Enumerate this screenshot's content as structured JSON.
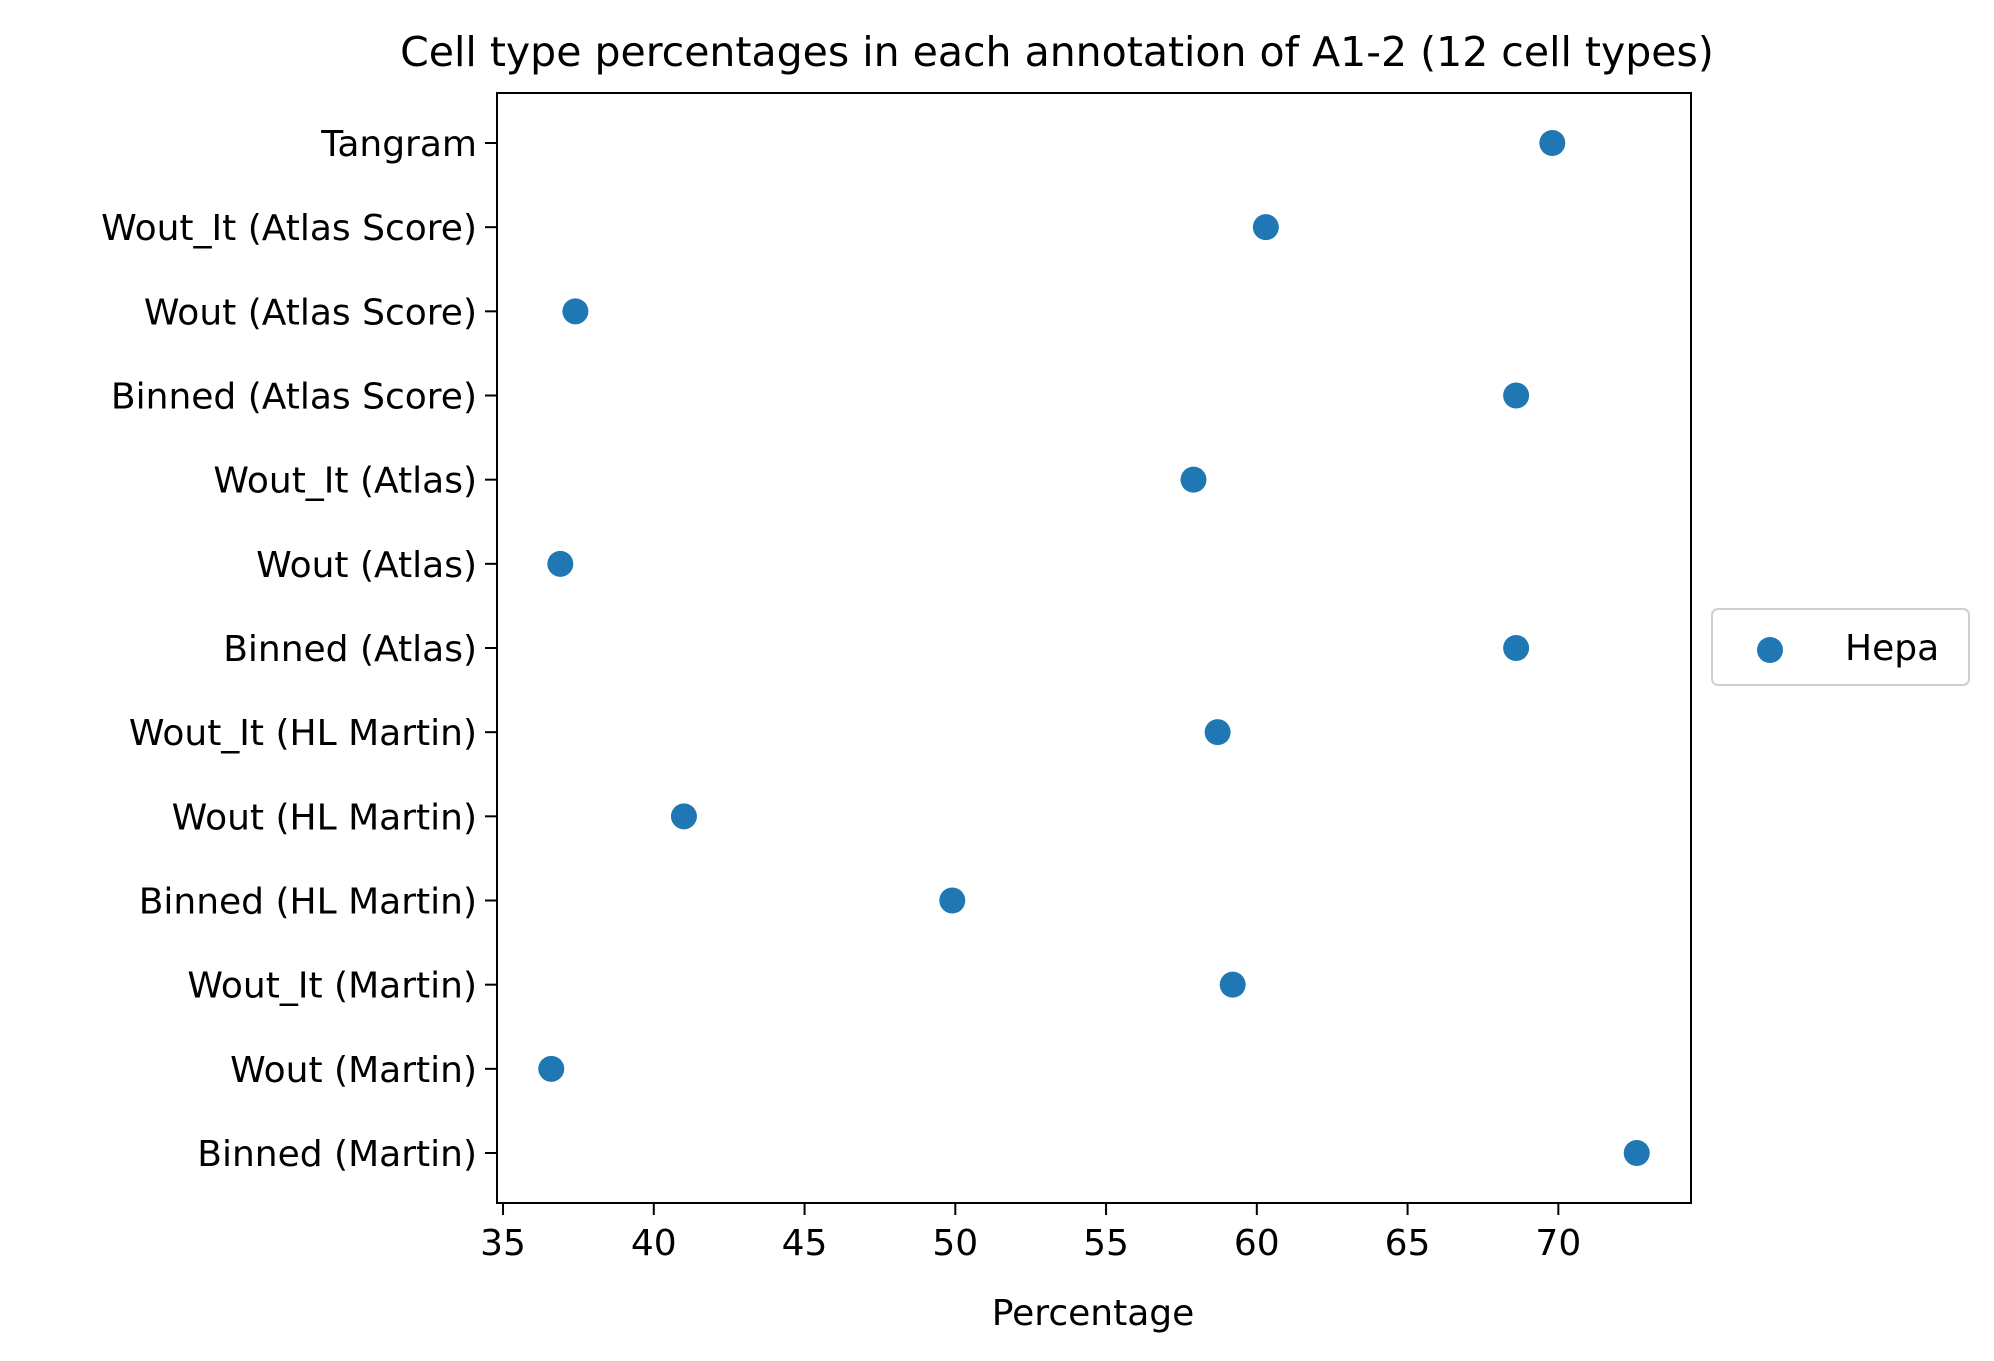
{
  "chart_data": {
    "type": "scatter",
    "title": "Cell type percentages in each annotation of A1-2 (12 cell types)",
    "xlabel": "Percentage",
    "ylabel": "",
    "xlim": [
      34.8,
      74.4
    ],
    "xticks": [
      35,
      40,
      45,
      50,
      55,
      60,
      65,
      70
    ],
    "categories": [
      "Binned (Martin)",
      "Wout (Martin)",
      "Wout_It (Martin)",
      "Binned (HL Martin)",
      "Wout (HL Martin)",
      "Wout_It (HL Martin)",
      "Binned (Atlas)",
      "Wout (Atlas)",
      "Wout_It (Atlas)",
      "Binned (Atlas Score)",
      "Wout (Atlas Score)",
      "Wout_It (Atlas Score)",
      "Tangram"
    ],
    "series": [
      {
        "name": "Hepa",
        "color": "#1f77b4",
        "values": [
          72.6,
          36.6,
          59.2,
          49.9,
          41.0,
          58.7,
          68.6,
          36.9,
          57.9,
          68.6,
          37.4,
          60.3,
          69.8
        ]
      }
    ],
    "legend": {
      "placement": "center-right-outside"
    },
    "grid": false
  }
}
